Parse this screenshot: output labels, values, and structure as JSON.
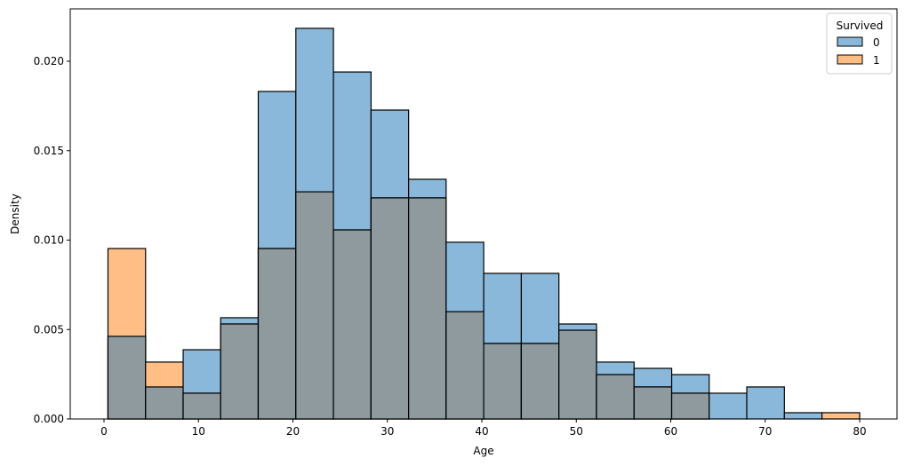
{
  "chart_data": {
    "type": "histogram",
    "xlabel": "Age",
    "ylabel": "Density",
    "xlim": [
      -4,
      82
    ],
    "ylim": [
      0,
      0.0229
    ],
    "xticks": [
      0,
      10,
      20,
      30,
      40,
      50,
      60,
      70,
      80
    ],
    "yticks": [
      0.0,
      0.005,
      0.01,
      0.015,
      0.02
    ],
    "ytick_labels": [
      "0.000",
      "0.005",
      "0.010",
      "0.015",
      "0.020"
    ],
    "bin_edges": [
      0.42,
      4.4,
      8.38,
      12.35,
      16.33,
      20.31,
      24.29,
      28.27,
      32.25,
      36.22,
      40.2,
      44.18,
      48.16,
      52.14,
      56.12,
      60.1,
      64.07,
      68.05,
      72.03,
      76.01,
      80.0
    ],
    "legend": {
      "title": "Survived",
      "position": "top-right"
    },
    "series": [
      {
        "name": "0",
        "color": "#8ab8da",
        "values": [
          0.00462,
          0.00179,
          0.00387,
          0.00566,
          0.01831,
          0.02184,
          0.0194,
          0.01727,
          0.0134,
          0.00988,
          0.00814,
          0.00814,
          0.00531,
          0.00318,
          0.00283,
          0.00248,
          0.00144,
          0.00179,
          0.00035,
          0
        ]
      },
      {
        "name": "1",
        "color": "#ffbe86",
        "values": [
          0.00953,
          0.00318,
          0.00144,
          0.00531,
          0.00953,
          0.0127,
          0.01057,
          0.01236,
          0.01236,
          0.006,
          0.00422,
          0.00422,
          0.00496,
          0.00248,
          0.00179,
          0.00144,
          0,
          0,
          0,
          0.00035
        ]
      }
    ],
    "overlap_color": "#8e9a9e"
  }
}
